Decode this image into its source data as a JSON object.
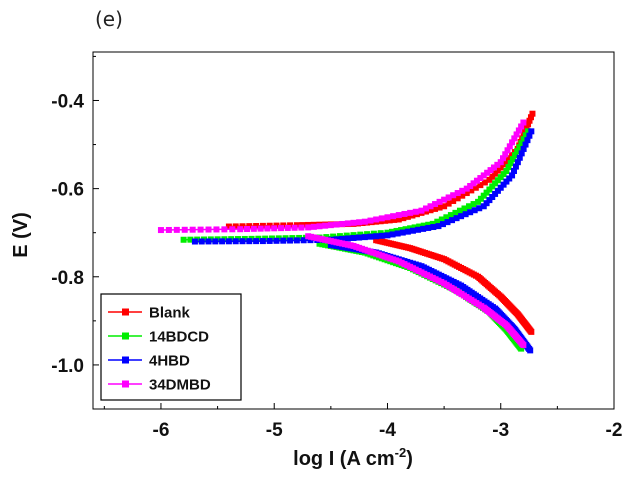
{
  "panel_label": "(e)",
  "chart_data": {
    "type": "line",
    "title": "",
    "xlabel": "log I (A cm",
    "xlabel_sup": "-2",
    "xlabel_end": ")",
    "ylabel": "E (V)",
    "xlim": [
      -6.6,
      -2.0
    ],
    "ylim": [
      -1.1,
      -0.29
    ],
    "xticks": [
      -6,
      -5,
      -4,
      -3,
      -2
    ],
    "xtick_labels": [
      "-6",
      "-5",
      "-4",
      "-3",
      "-2"
    ],
    "yticks": [
      -0.4,
      -0.6,
      -0.8,
      -1.0
    ],
    "ytick_labels": [
      "-0.4",
      "-0.6",
      "-0.8",
      "-1.0"
    ],
    "grid": false,
    "legend_position": "bottom-left",
    "series": [
      {
        "name": "Blank",
        "color": "#ff0000",
        "ecorr": -0.706,
        "icorr_log": -4.1,
        "anodic": {
          "x": [
            -5.4,
            -4.8,
            -4.3,
            -3.9,
            -3.5,
            -3.1,
            -2.85,
            -2.72
          ],
          "y": [
            -0.686,
            -0.683,
            -0.68,
            -0.67,
            -0.64,
            -0.58,
            -0.51,
            -0.43
          ]
        },
        "cathodic": {
          "x": [
            -4.1,
            -3.8,
            -3.5,
            -3.2,
            -3.0,
            -2.85,
            -2.73
          ],
          "y": [
            -0.717,
            -0.735,
            -0.76,
            -0.8,
            -0.845,
            -0.885,
            -0.925
          ]
        }
      },
      {
        "name": "14BDCD",
        "color": "#00ee00",
        "ecorr": -0.716,
        "icorr_log": -4.6,
        "anodic": {
          "x": [
            -5.8,
            -5.2,
            -4.6,
            -4.0,
            -3.6,
            -3.2,
            -2.95,
            -2.76
          ],
          "y": [
            -0.716,
            -0.714,
            -0.711,
            -0.7,
            -0.68,
            -0.63,
            -0.56,
            -0.47
          ]
        },
        "cathodic": {
          "x": [
            -4.6,
            -4.2,
            -3.8,
            -3.4,
            -3.1,
            -2.95,
            -2.82
          ],
          "y": [
            -0.725,
            -0.745,
            -0.78,
            -0.83,
            -0.88,
            -0.92,
            -0.963
          ]
        }
      },
      {
        "name": "4HBD",
        "color": "#0000ff",
        "ecorr": -0.72,
        "icorr_log": -4.5,
        "anodic": {
          "x": [
            -5.7,
            -5.1,
            -4.5,
            -4.0,
            -3.55,
            -3.15,
            -2.9,
            -2.73
          ],
          "y": [
            -0.72,
            -0.719,
            -0.716,
            -0.706,
            -0.685,
            -0.64,
            -0.57,
            -0.47
          ]
        },
        "cathodic": {
          "x": [
            -4.5,
            -4.1,
            -3.7,
            -3.35,
            -3.05,
            -2.88,
            -2.74
          ],
          "y": [
            -0.728,
            -0.745,
            -0.776,
            -0.82,
            -0.872,
            -0.918,
            -0.967
          ]
        }
      },
      {
        "name": "34DMBD",
        "color": "#ff00ff",
        "ecorr": -0.696,
        "icorr_log": -4.7,
        "anodic": {
          "x": [
            -6.0,
            -5.3,
            -4.7,
            -4.2,
            -3.7,
            -3.3,
            -3.0,
            -2.8
          ],
          "y": [
            -0.694,
            -0.692,
            -0.688,
            -0.675,
            -0.65,
            -0.6,
            -0.54,
            -0.45
          ]
        },
        "cathodic": {
          "x": [
            -4.7,
            -4.3,
            -3.9,
            -3.5,
            -3.15,
            -2.95,
            -2.8
          ],
          "y": [
            -0.708,
            -0.73,
            -0.765,
            -0.815,
            -0.87,
            -0.91,
            -0.955
          ]
        }
      }
    ]
  }
}
